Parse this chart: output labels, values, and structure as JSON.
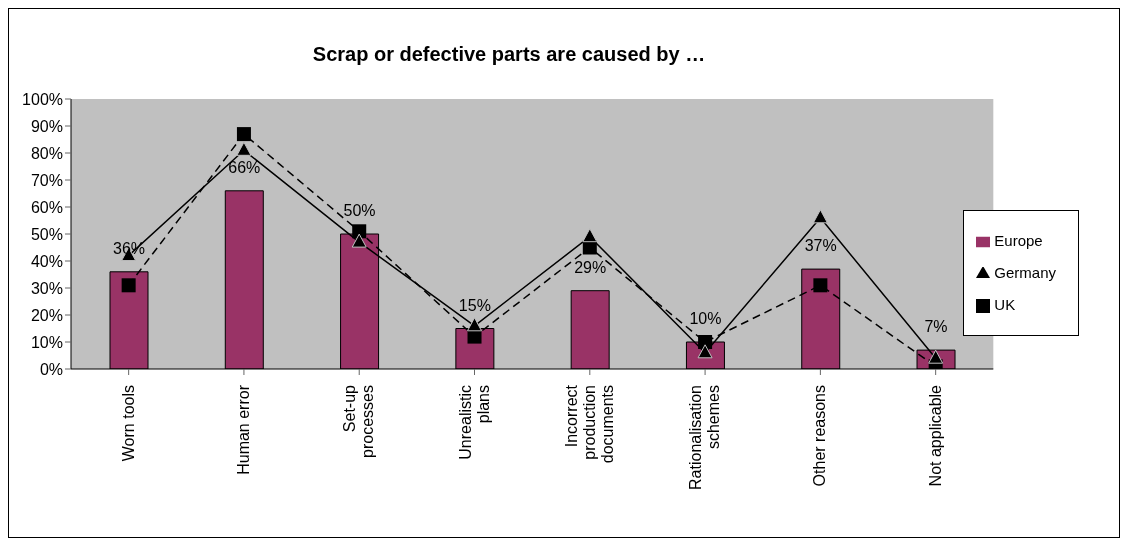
{
  "chart_data": {
    "type": "bar",
    "title": "Scrap or defective parts are caused by …",
    "categories": [
      "Worn tools",
      "Human error",
      "Set-up processes",
      "Unrealistic plans",
      "Incorrect production documents",
      "Rationalisation schemes",
      "Other reasons",
      "Not applicable"
    ],
    "series": [
      {
        "name": "Europe",
        "color": "#993366",
        "values": [
          36,
          66,
          50,
          15,
          29,
          10,
          37,
          7
        ],
        "value_labels": [
          "36%",
          "66%",
          "50%",
          "15%",
          "29%",
          "10%",
          "37%",
          "7%"
        ]
      },
      {
        "name": "Germany",
        "type": "line",
        "color": "#000000",
        "marker": "triangle",
        "line_style": "solid",
        "values": [
          42,
          81,
          47,
          16,
          49,
          6,
          56,
          4
        ]
      },
      {
        "name": "UK",
        "type": "line",
        "color": "#000000",
        "marker": "square",
        "line_style": "dashed",
        "values": [
          31,
          87,
          51,
          12,
          45,
          10,
          31,
          1
        ]
      }
    ],
    "ylim": [
      0,
      100
    ],
    "yticks": [
      {
        "value": 0,
        "label": "0%"
      },
      {
        "value": 10,
        "label": "10%"
      },
      {
        "value": 20,
        "label": "20%"
      },
      {
        "value": 30,
        "label": "30%"
      },
      {
        "value": 40,
        "label": "40%"
      },
      {
        "value": 50,
        "label": "50%"
      },
      {
        "value": 60,
        "label": "60%"
      },
      {
        "value": 70,
        "label": "70%"
      },
      {
        "value": 80,
        "label": "80%"
      },
      {
        "value": 90,
        "label": "90%"
      },
      {
        "value": 100,
        "label": "100%"
      }
    ],
    "grid": false,
    "legend": "right"
  }
}
